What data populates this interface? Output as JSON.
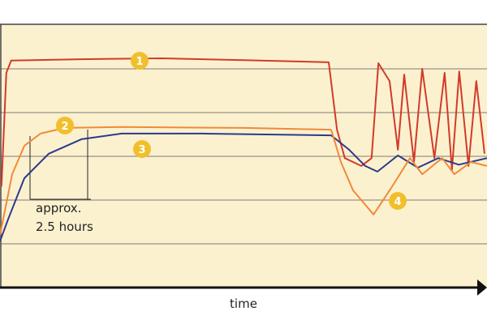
{
  "chart_data": {
    "type": "line",
    "x_label": "time",
    "annotation": [
      "approx.",
      "2.5 hours"
    ],
    "xlim": [
      0,
      100
    ],
    "ylim": [
      0,
      6
    ],
    "yticks": [
      1,
      2,
      3,
      4,
      5
    ],
    "grid": true,
    "series": [
      {
        "name": "1",
        "color": "#d23a2a",
        "x": [
          0.3,
          1.3,
          2.3,
          16.7,
          33.3,
          50,
          67.5,
          69.2,
          70.8,
          74.2,
          76.3,
          77.7,
          80,
          81.7,
          83,
          85,
          86.7,
          89.2,
          91.3,
          92.8,
          94.3,
          96.2,
          97.8,
          99.5
        ],
        "values": [
          2.31,
          4.91,
          5.19,
          5.22,
          5.24,
          5.2,
          5.15,
          3.61,
          2.96,
          2.78,
          2.96,
          5.13,
          4.72,
          3.15,
          4.87,
          2.87,
          5.0,
          2.96,
          4.91,
          2.69,
          4.94,
          2.78,
          4.72,
          3.06
        ]
      },
      {
        "name": "2",
        "color": "#ef8a3a",
        "x": [
          0,
          2.5,
          5,
          8.3,
          13.3,
          25,
          50,
          68
        ],
        "values": [
          1.2,
          2.59,
          3.24,
          3.52,
          3.65,
          3.67,
          3.65,
          3.61
        ]
      },
      {
        "name": "3",
        "color": "#2b3a8c",
        "x": [
          0,
          1.7,
          5,
          10,
          16.7,
          25,
          41.7,
          68,
          71.7,
          75,
          77.5,
          81.7,
          85.8,
          90,
          94.2,
          100
        ],
        "values": [
          1.06,
          1.57,
          2.5,
          3.06,
          3.39,
          3.52,
          3.52,
          3.48,
          3.15,
          2.78,
          2.65,
          3.02,
          2.74,
          2.96,
          2.81,
          2.96
        ]
      },
      {
        "name": "4",
        "color": "#ef8a3a",
        "x": [
          68,
          70,
          72.5,
          76.7,
          80,
          84.2,
          86.7,
          90.8,
          93.3,
          96.7,
          100
        ],
        "values": [
          3.61,
          2.87,
          2.22,
          1.67,
          2.22,
          2.96,
          2.59,
          2.96,
          2.59,
          2.87,
          2.78
        ]
      }
    ]
  }
}
